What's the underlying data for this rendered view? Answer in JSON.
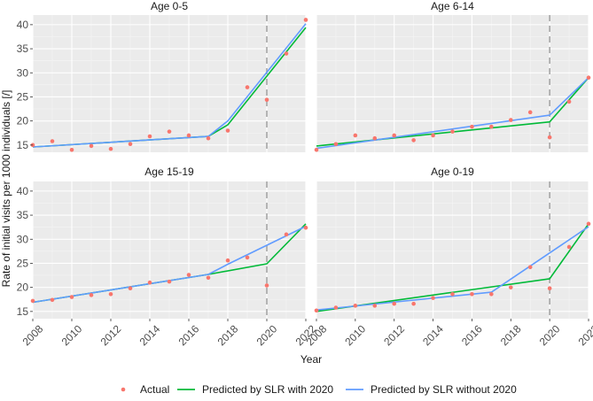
{
  "chart_data": {
    "type": "line",
    "xlabel": "Year",
    "ylabel": "Rate of initial visits per 1000 individuals [/]",
    "xlim": [
      2008,
      2022
    ],
    "ylim": [
      13.5,
      42
    ],
    "x_ticks": [
      "2008",
      "2010",
      "2012",
      "2014",
      "2016",
      "2018",
      "2020",
      "2022"
    ],
    "y_ticks": [
      "15",
      "20",
      "25",
      "30",
      "35",
      "40"
    ],
    "reference_line_x": 2020,
    "legend": {
      "position": "bottom",
      "items": [
        {
          "label": "Actual",
          "marker": "point",
          "color": "#F8766D"
        },
        {
          "label": "Predicted by SLR with 2020",
          "marker": "line",
          "color": "#00BA38"
        },
        {
          "label": "Predicted by SLR without 2020",
          "marker": "line",
          "color": "#619CFF"
        }
      ]
    },
    "panels": [
      {
        "title": "Age 0-5",
        "x": [
          2008,
          2009,
          2010,
          2011,
          2012,
          2013,
          2014,
          2015,
          2016,
          2017,
          2018,
          2019,
          2020,
          2021,
          2022
        ],
        "series": [
          {
            "name": "Actual",
            "values": [
              15.0,
              15.8,
              14.0,
              14.8,
              14.2,
              15.2,
              16.8,
              17.8,
              17.0,
              16.4,
              18.0,
              27.0,
              24.4,
              34.0,
              41.0
            ]
          },
          {
            "name": "Predicted by SLR with 2020",
            "x": [
              2008,
              2017,
              2018,
              2022
            ],
            "values": [
              14.6,
              16.8,
              19.2,
              39.4
            ]
          },
          {
            "name": "Predicted by SLR without 2020",
            "x": [
              2008,
              2017,
              2018,
              2022
            ],
            "values": [
              14.6,
              16.8,
              20.0,
              40.2
            ]
          }
        ]
      },
      {
        "title": "Age 6-14",
        "x": [
          2008,
          2009,
          2010,
          2011,
          2012,
          2013,
          2014,
          2015,
          2016,
          2017,
          2018,
          2019,
          2020,
          2021,
          2022
        ],
        "series": [
          {
            "name": "Actual",
            "values": [
              14.0,
              15.2,
              17.0,
              16.4,
              17.0,
              16.0,
              17.0,
              17.8,
              18.8,
              18.8,
              20.2,
              21.8,
              16.6,
              24.0,
              29.0
            ]
          },
          {
            "name": "Predicted by SLR with 2020",
            "x": [
              2008,
              2020,
              2022
            ],
            "values": [
              14.8,
              19.8,
              29.0
            ]
          },
          {
            "name": "Predicted by SLR without 2020",
            "x": [
              2008,
              2020,
              2022
            ],
            "values": [
              14.3,
              21.2,
              29.0
            ]
          }
        ]
      },
      {
        "title": "Age 15-19",
        "x": [
          2008,
          2009,
          2010,
          2011,
          2012,
          2013,
          2014,
          2015,
          2016,
          2017,
          2018,
          2019,
          2020,
          2021,
          2022
        ],
        "series": [
          {
            "name": "Actual",
            "values": [
              17.2,
              17.4,
              18.0,
              18.4,
              18.6,
              19.8,
              21.0,
              21.2,
              22.6,
              22.0,
              25.6,
              26.2,
              20.4,
              31.0,
              32.4
            ]
          },
          {
            "name": "Predicted by SLR with 2020",
            "x": [
              2008,
              2017,
              2020,
              2022
            ],
            "values": [
              16.9,
              22.7,
              24.9,
              33.2
            ]
          },
          {
            "name": "Predicted by SLR without 2020",
            "x": [
              2008,
              2017,
              2018,
              2022
            ],
            "values": [
              16.9,
              22.7,
              24.8,
              32.7
            ]
          }
        ]
      },
      {
        "title": "Age 0-19",
        "x": [
          2008,
          2009,
          2010,
          2011,
          2012,
          2013,
          2014,
          2015,
          2016,
          2017,
          2018,
          2019,
          2020,
          2021,
          2022
        ],
        "series": [
          {
            "name": "Actual",
            "values": [
              15.2,
              15.8,
              16.2,
              16.2,
              16.6,
              16.6,
              17.8,
              18.6,
              18.6,
              18.6,
              20.0,
              24.2,
              19.8,
              28.4,
              33.2
            ]
          },
          {
            "name": "Predicted by SLR with 2020",
            "x": [
              2008,
              2020,
              2022
            ],
            "values": [
              15.0,
              21.8,
              33.2
            ]
          },
          {
            "name": "Predicted by SLR without 2020",
            "x": [
              2008,
              2017,
              2022
            ],
            "values": [
              15.3,
              19.0,
              32.6
            ]
          }
        ]
      }
    ]
  }
}
